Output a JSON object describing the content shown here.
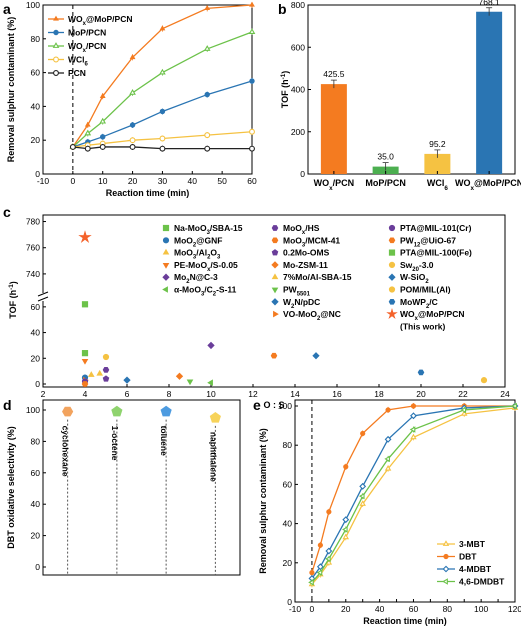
{
  "chart_data": [
    {
      "panel": "a",
      "type": "line",
      "xlabel": "Reaction time (min)",
      "ylabel": "Removal sulphur contaminant (%)",
      "xlim": [
        -10,
        60
      ],
      "ylim": [
        0,
        100
      ],
      "xticks": [
        "-10",
        "0",
        "10",
        "20",
        "30",
        "40",
        "50",
        "60"
      ],
      "yticks": [
        "0",
        "20",
        "40",
        "60",
        "80",
        "100"
      ],
      "series": [
        {
          "name": "WOx@MoP/PCN",
          "color": "#f47b20",
          "marker": "triangle",
          "x": [
            0,
            5,
            10,
            20,
            30,
            45,
            60
          ],
          "y": [
            16,
            29,
            46,
            69,
            86,
            98,
            100
          ]
        },
        {
          "name": "MoP/PCN",
          "color": "#2a75b3",
          "marker": "circle",
          "x": [
            0,
            5,
            10,
            20,
            30,
            45,
            60
          ],
          "y": [
            16,
            19,
            22,
            29,
            37,
            47,
            55
          ]
        },
        {
          "name": "WOx/PCN",
          "color": "#6cc24a",
          "marker": "triangle-open",
          "x": [
            0,
            5,
            10,
            20,
            30,
            45,
            60
          ],
          "y": [
            16,
            24,
            31,
            48,
            60,
            74,
            84
          ]
        },
        {
          "name": "WCl6",
          "color": "#f5c242",
          "marker": "circle-open",
          "x": [
            0,
            5,
            10,
            20,
            30,
            45,
            60
          ],
          "y": [
            16,
            17,
            18,
            20,
            21,
            23,
            25
          ]
        },
        {
          "name": "PCN",
          "color": "#222222",
          "marker": "circle-open",
          "x": [
            0,
            5,
            10,
            20,
            30,
            45,
            60
          ],
          "y": [
            16,
            15,
            16,
            16,
            15,
            15,
            15
          ]
        }
      ],
      "legend": [
        "WOx@MoP/PCN",
        "MoP/PCN",
        "WOx/PCN",
        "WCl6",
        "PCN"
      ]
    },
    {
      "panel": "b",
      "type": "bar",
      "ylabel": "TOF (h⁻¹)",
      "ylim": [
        0,
        800
      ],
      "yticks": [
        "0",
        "200",
        "400",
        "600",
        "800"
      ],
      "categories": [
        "WOx/PCN",
        "MoP/PCN",
        "WCl6",
        "WOx@MoP/PCN"
      ],
      "values": [
        425.5,
        35.0,
        95.2,
        768.1
      ],
      "value_labels": [
        "425.5",
        "35.0",
        "95.2",
        "768.1"
      ],
      "colors": [
        "#f47b20",
        "#4caf50",
        "#f5c242",
        "#2a75b3"
      ]
    },
    {
      "panel": "c",
      "type": "scatter",
      "xlabel": "O : S",
      "ylabel": "TOF (h⁻¹)",
      "xlim": [
        2,
        24
      ],
      "xticks": [
        "2",
        "4",
        "6",
        "8",
        "10",
        "12",
        "14",
        "16",
        "18",
        "20",
        "22",
        "24"
      ],
      "yticks_low": [
        "0",
        "20",
        "40",
        "60"
      ],
      "yticks_high": [
        "740",
        "760",
        "780"
      ],
      "points": [
        {
          "name": "Na-MoO3/SBA-15",
          "x": 4,
          "y": 24,
          "marker": "square",
          "color": "#6cc24a"
        },
        {
          "name": "MoO2@GNF",
          "x": 4,
          "y": 5,
          "marker": "circle",
          "color": "#2a75b3"
        },
        {
          "name": "MoO3/Al2O3",
          "x": 4.3,
          "y": 7,
          "marker": "triangle-up",
          "color": "#f5c242"
        },
        {
          "name": "PE-MoOx/S-0.05",
          "x": 4,
          "y": 18,
          "marker": "triangle-down",
          "color": "#f47b20"
        },
        {
          "name": "Mo2N@C-3",
          "x": 10,
          "y": 30,
          "marker": "diamond",
          "color": "#6a3d9a"
        },
        {
          "name": "α-MoO3/C2-S-11",
          "x": 10,
          "y": 1,
          "marker": "triangle-left",
          "color": "#6cc24a"
        },
        {
          "name": "MoOx/HS",
          "x": 5,
          "y": 11,
          "marker": "hexagon",
          "color": "#6a3d9a"
        },
        {
          "name": "MoO3/MCM-41",
          "x": 13,
          "y": 22,
          "marker": "hexagon",
          "color": "#f47b20"
        },
        {
          "name": "0.2Mo-OMS",
          "x": 5,
          "y": 4,
          "marker": "pentagon",
          "color": "#6a3d9a"
        },
        {
          "name": "Mo-ZSM-11",
          "x": 8.5,
          "y": 6,
          "marker": "diamond",
          "color": "#f47b20"
        },
        {
          "name": "7%Mo/Al-SBA-15",
          "x": 4.7,
          "y": 8,
          "marker": "triangle-up",
          "color": "#f5c242"
        },
        {
          "name": "PW5501",
          "x": 9,
          "y": 2,
          "marker": "triangle-down",
          "color": "#6cc24a"
        },
        {
          "name": "W2N/pDC",
          "x": 15,
          "y": 22,
          "marker": "diamond",
          "color": "#2a75b3"
        },
        {
          "name": "VO-MoO2@NC",
          "x": 4,
          "y": 3,
          "marker": "triangle-right",
          "color": "#f47b20"
        },
        {
          "name": "PTA@MIL-101(Cr)",
          "x": 4,
          "y": 2,
          "marker": "circle",
          "color": "#6a3d9a"
        },
        {
          "name": "PW12@UiO-67",
          "x": 4,
          "y": 0,
          "marker": "hexagon",
          "color": "#f47b20"
        },
        {
          "name": "PTA@MIL-100(Fe)",
          "x": 4,
          "y": 62,
          "marker": "square",
          "color": "#6cc24a"
        },
        {
          "name": "Sw20-3.0",
          "x": 23,
          "y": 3,
          "marker": "circle",
          "color": "#f5c242"
        },
        {
          "name": "W-SiO2",
          "x": 6,
          "y": 3,
          "marker": "diamond",
          "color": "#2a75b3"
        },
        {
          "name": "POM/MIL(Al)",
          "x": 5,
          "y": 21,
          "marker": "circle",
          "color": "#f5c242"
        },
        {
          "name": "MoWP2/C",
          "x": 20,
          "y": 9,
          "marker": "hexagon",
          "color": "#2a75b3"
        },
        {
          "name": "WOx@MoP/PCN",
          "x": 4,
          "y": 768,
          "marker": "star",
          "color": "#f4622a"
        }
      ],
      "legend_col1": [
        "Na-MoO3/SBA-15",
        "MoO2@GNF",
        "MoO3/Al2O3",
        "PE-MoOx/S-0.05",
        "Mo2N@C-3",
        "α-MoO3/C2-S-11"
      ],
      "legend_col2": [
        "MoOx/HS",
        "MoO3/MCM-41",
        "0.2Mo-OMS",
        "Mo-ZSM-11",
        "7%Mo/Al-SBA-15",
        "PW5501",
        "W2N/pDC",
        "VO-MoO2@NC"
      ],
      "legend_col3": [
        "PTA@MIL-101(Cr)",
        "PW12@UiO-67",
        "PTA@MIL-100(Fe)",
        "Sw20-3.0",
        "W-SiO2",
        "POM/MIL(Al)",
        "MoWP2/C",
        "WOx@MoP/PCN"
      ],
      "legend_note": "(This work)"
    },
    {
      "panel": "d",
      "type": "scatter",
      "ylabel": "DBT oxidative selectivity (%)",
      "ylim": [
        0,
        100
      ],
      "yticks": [
        "0",
        "20",
        "40",
        "60",
        "80",
        "100"
      ],
      "categories": [
        "cyclohexane",
        "1-octene",
        "toluene",
        "naphthalene"
      ],
      "values": [
        99,
        99,
        99,
        95
      ],
      "markers": [
        "hexagon",
        "pentagon",
        "pentagon",
        "pentagon"
      ],
      "colors": [
        "#f2a35e",
        "#8fd36e",
        "#4d9be0",
        "#f7d35a"
      ]
    },
    {
      "panel": "e",
      "type": "line",
      "xlabel": "Reaction time (min)",
      "ylabel": "Removal sulphur contaminant (%)",
      "xlim": [
        -10,
        120
      ],
      "ylim": [
        0,
        100
      ],
      "xticks": [
        "-10",
        "0",
        "10",
        "20",
        "30",
        "40",
        "50",
        "60",
        "70",
        "80",
        "90",
        "100",
        "110",
        "120"
      ],
      "yticks": [
        "0",
        "20",
        "40",
        "60",
        "80",
        "100"
      ],
      "series": [
        {
          "name": "3-MBT",
          "color": "#f5c242",
          "x": [
            0,
            5,
            10,
            20,
            30,
            45,
            60,
            90,
            120
          ],
          "y": [
            9,
            14,
            20,
            33,
            50,
            68,
            84,
            96,
            99
          ]
        },
        {
          "name": "DBT",
          "color": "#f47b20",
          "x": [
            0,
            5,
            10,
            20,
            30,
            45,
            60,
            90,
            120
          ],
          "y": [
            15,
            29,
            46,
            69,
            86,
            98,
            100,
            100,
            100
          ]
        },
        {
          "name": "4-MDBT",
          "color": "#2a75b3",
          "x": [
            0,
            5,
            10,
            20,
            30,
            45,
            60,
            90,
            120
          ],
          "y": [
            12,
            18,
            26,
            42,
            59,
            83,
            95,
            99,
            100
          ]
        },
        {
          "name": "4,6-DMDBT",
          "color": "#6cc24a",
          "x": [
            0,
            5,
            10,
            20,
            30,
            45,
            60,
            90,
            120
          ],
          "y": [
            10,
            15,
            22,
            37,
            54,
            73,
            88,
            98,
            100
          ]
        }
      ],
      "legend": [
        "3-MBT",
        "DBT",
        "4-MDBT",
        "4,6-DMDBT"
      ]
    }
  ],
  "panel_labels": [
    "a",
    "b",
    "c",
    "d",
    "e"
  ]
}
